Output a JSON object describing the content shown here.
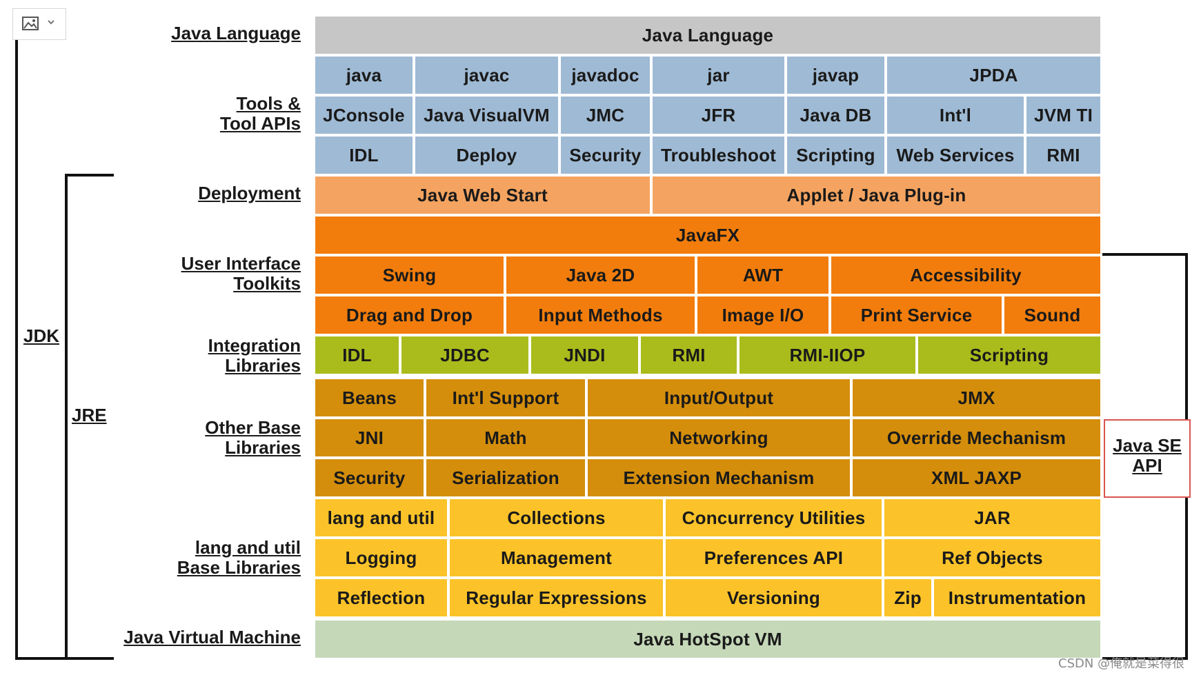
{
  "colors": {
    "gray": "#c6c6c6",
    "blue": "#9fbad4",
    "peach": "#f4a460",
    "orange": "#f27d0c",
    "olive": "#aabb1c",
    "amber": "#d48e0b",
    "yellow": "#fbc329",
    "green": "#c5d8b8",
    "red_outline": "#d9534f"
  },
  "labels": {
    "java_language": "Java Language",
    "tools_1": "Tools &",
    "tools_2": "Tool APIs",
    "deployment": "Deployment",
    "ui_1": "User Interface",
    "ui_2": "Toolkits",
    "integ_1": "Integration",
    "integ_2": "Libraries",
    "other_1": "Other Base",
    "other_2": "Libraries",
    "lang_1": "lang and util",
    "lang_2": "Base Libraries",
    "jvm": "Java Virtual Machine",
    "jdk": "JDK",
    "jre": "JRE",
    "api_1": "Java SE",
    "api_2": "API"
  },
  "rows": {
    "java_language": [
      "Java Language"
    ],
    "tools_1": [
      "java",
      "javac",
      "javadoc",
      "jar",
      "javap",
      "JPDA"
    ],
    "tools_2": [
      "JConsole",
      "Java VisualVM",
      "JMC",
      "JFR",
      "Java DB",
      "Int'l",
      "JVM TI"
    ],
    "tools_3": [
      "IDL",
      "Deploy",
      "Security",
      "Troubleshoot",
      "Scripting",
      "Web Services",
      "RMI"
    ],
    "deployment": [
      "Java Web Start",
      "Applet / Java Plug-in"
    ],
    "javafx": [
      "JavaFX"
    ],
    "ui_1": [
      "Swing",
      "Java 2D",
      "AWT",
      "Accessibility"
    ],
    "ui_2": [
      "Drag and Drop",
      "Input Methods",
      "Image I/O",
      "Print Service",
      "Sound"
    ],
    "integration": [
      "IDL",
      "JDBC",
      "JNDI",
      "RMI",
      "RMI-IIOP",
      "Scripting"
    ],
    "other_1": [
      "Beans",
      "Int'l Support",
      "Input/Output",
      "JMX"
    ],
    "other_2": [
      "JNI",
      "Math",
      "Networking",
      "Override Mechanism"
    ],
    "other_3": [
      "Security",
      "Serialization",
      "Extension Mechanism",
      "XML JAXP"
    ],
    "lang_1": [
      "lang and util",
      "Collections",
      "Concurrency Utilities",
      "JAR"
    ],
    "lang_2": [
      "Logging",
      "Management",
      "Preferences API",
      "Ref Objects"
    ],
    "lang_3": [
      "Reflection",
      "Regular Expressions",
      "Versioning",
      "Zip",
      "Instrumentation"
    ],
    "jvm": [
      "Java HotSpot VM"
    ]
  },
  "watermark": "CSDN @俺就是菜得很"
}
